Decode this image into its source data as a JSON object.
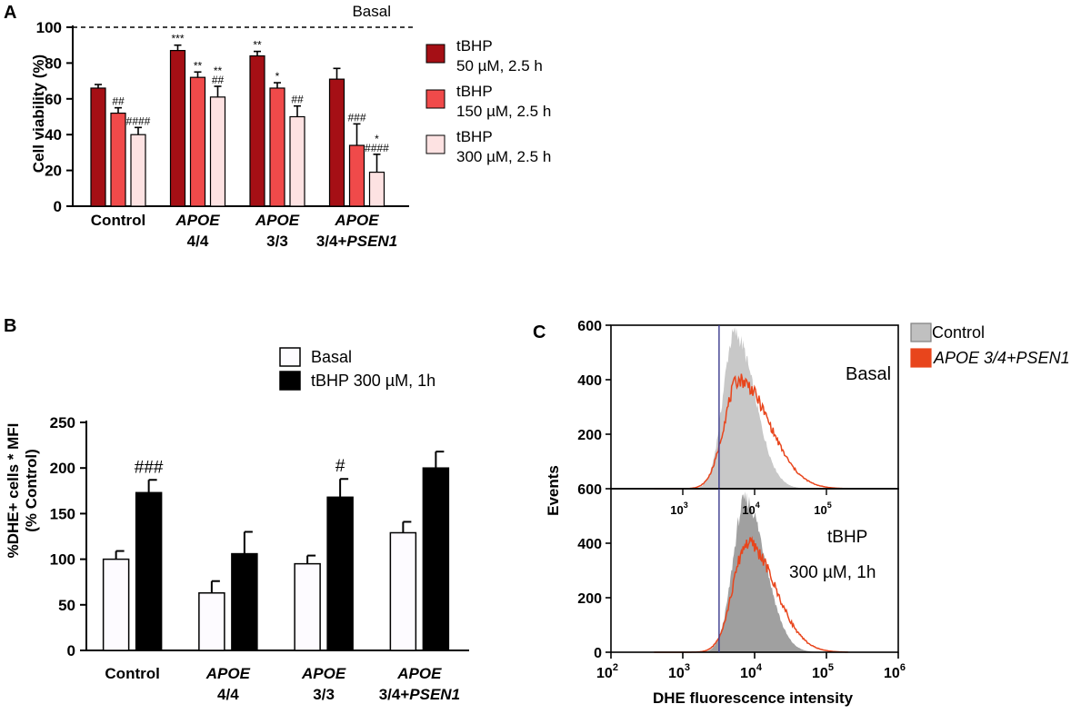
{
  "colors": {
    "dark_red": "#a50f15",
    "red": "#f04a4a",
    "pink": "#fde2e2",
    "bar_white": "#fdfbff",
    "black": "#000000",
    "gray_fill": "#b8b8b8",
    "gray_fill_dark": "#8f8f8f",
    "orange": "#e8451c",
    "gate_line": "#3a3a8c"
  },
  "panels": {
    "a": {
      "label": "A"
    },
    "b": {
      "label": "B"
    },
    "c": {
      "label": "C"
    }
  },
  "chart_data": [
    {
      "id": "A",
      "type": "bar",
      "ylabel": "Cell viability (%)",
      "ylim": [
        0,
        100
      ],
      "yticks": [
        0,
        20,
        40,
        60,
        80,
        100
      ],
      "reference_line": {
        "value": 100,
        "label": "Basal"
      },
      "groups": [
        {
          "line1_pre": "Control",
          "line1_ital": "",
          "line2_pre": "",
          "line2_ital": ""
        },
        {
          "line1_pre": "",
          "line1_ital": "APOE",
          "line2_pre": "4/4",
          "line2_ital": ""
        },
        {
          "line1_pre": "",
          "line1_ital": "APOE",
          "line2_pre": "3/3",
          "line2_ital": ""
        },
        {
          "line1_pre": "",
          "line1_ital": "APOE",
          "line2_pre": "3/4+",
          "line2_ital": "PSEN1"
        }
      ],
      "series": [
        {
          "name_line1": "tBHP",
          "name_line2": "50 µM, 2.5 h",
          "color": "#a50f15",
          "values": [
            66,
            87,
            84,
            71
          ],
          "errors": [
            2,
            3,
            2.5,
            6
          ],
          "annotations": [
            [],
            [
              "***"
            ],
            [
              "**"
            ],
            []
          ]
        },
        {
          "name_line1": "tBHP",
          "name_line2": "150 µM, 2.5 h",
          "color": "#f04a4a",
          "values": [
            52,
            72,
            66,
            34
          ],
          "errors": [
            3,
            3,
            3,
            12
          ],
          "annotations": [
            [
              "##"
            ],
            [
              "**"
            ],
            [
              "*"
            ],
            [
              "###"
            ]
          ]
        },
        {
          "name_line1": "tBHP",
          "name_line2": "300 µM, 2.5 h",
          "color": "#fde2e2",
          "values": [
            40,
            61,
            50,
            19
          ],
          "errors": [
            4,
            6,
            6,
            10
          ],
          "annotations": [
            [
              "####"
            ],
            [
              "**",
              "##"
            ],
            [
              "##"
            ],
            [
              "*",
              "####"
            ]
          ]
        }
      ]
    },
    {
      "id": "B",
      "type": "bar",
      "ylabel_line1": "%DHE+ cells * MFI",
      "ylabel_line2": "(% Control)",
      "ylim": [
        0,
        250
      ],
      "yticks": [
        0,
        50,
        100,
        150,
        200,
        250
      ],
      "groups": [
        {
          "line1_pre": "Control",
          "line1_ital": "",
          "line2_pre": "",
          "line2_ital": ""
        },
        {
          "line1_pre": "",
          "line1_ital": "APOE",
          "line2_pre": "4/4",
          "line2_ital": ""
        },
        {
          "line1_pre": "",
          "line1_ital": "APOE",
          "line2_pre": "3/3",
          "line2_ital": ""
        },
        {
          "line1_pre": "",
          "line1_ital": "APOE",
          "line2_pre": "3/4+",
          "line2_ital": "PSEN1"
        }
      ],
      "series": [
        {
          "name": "Basal",
          "color": "#fdfbff",
          "values": [
            100,
            63,
            95,
            129
          ],
          "errors": [
            9,
            13,
            9,
            12
          ],
          "annotations": [
            "",
            "",
            "",
            ""
          ]
        },
        {
          "name": "tBHP 300 µM, 1h",
          "color": "#000000",
          "values": [
            173,
            106,
            168,
            200
          ],
          "errors": [
            14,
            24,
            20,
            18
          ],
          "annotations": [
            "###",
            "",
            "#",
            ""
          ]
        }
      ]
    },
    {
      "id": "C",
      "type": "area",
      "ylabel": "Events",
      "xlabel": "DHE fluorescence intensity",
      "xscale": "log",
      "xlim": [
        100,
        1000000
      ],
      "ylim": [
        0,
        600
      ],
      "yticks": [
        0,
        200,
        400,
        600
      ],
      "gate_x": 3200,
      "x_ticks": [
        {
          "value": 100,
          "base": "10",
          "exp": "2"
        },
        {
          "value": 1000,
          "base": "10",
          "exp": "3"
        },
        {
          "value": 10000,
          "base": "10",
          "exp": "4"
        },
        {
          "value": 100000,
          "base": "10",
          "exp": "5"
        },
        {
          "value": 1000000,
          "base": "10",
          "exp": "6"
        }
      ],
      "inner_ticks": [
        {
          "value": 1000,
          "base": "10",
          "exp": "3"
        },
        {
          "value": 10000,
          "base": "10",
          "exp": "4"
        },
        {
          "value": 100000,
          "base": "10",
          "exp": "5"
        }
      ],
      "legend": [
        {
          "name": "Control",
          "name_ital": "",
          "color": "#c0c0c0",
          "edge": "#7f7f7f"
        },
        {
          "name": "",
          "name_ital": "APOE 3/4+PSEN1",
          "color": "#e8451c",
          "edge": "#e8451c"
        }
      ],
      "subpanels": [
        {
          "label_line1": "Basal",
          "label_line2": "",
          "control_peak": 570,
          "control_center": 3.72,
          "control_spread_left": 0.16,
          "control_spread_right": 0.28,
          "psen_peak": 400,
          "psen_center": 3.78,
          "psen_spread_left": 0.2,
          "psen_spread_right": 0.42
        },
        {
          "label_line1": "tBHP",
          "label_line2": "300 µM, 1h",
          "control_peak": 560,
          "control_center": 3.87,
          "control_spread_left": 0.17,
          "control_spread_right": 0.28,
          "psen_peak": 400,
          "psen_center": 3.9,
          "psen_spread_left": 0.2,
          "psen_spread_right": 0.38
        }
      ]
    }
  ]
}
